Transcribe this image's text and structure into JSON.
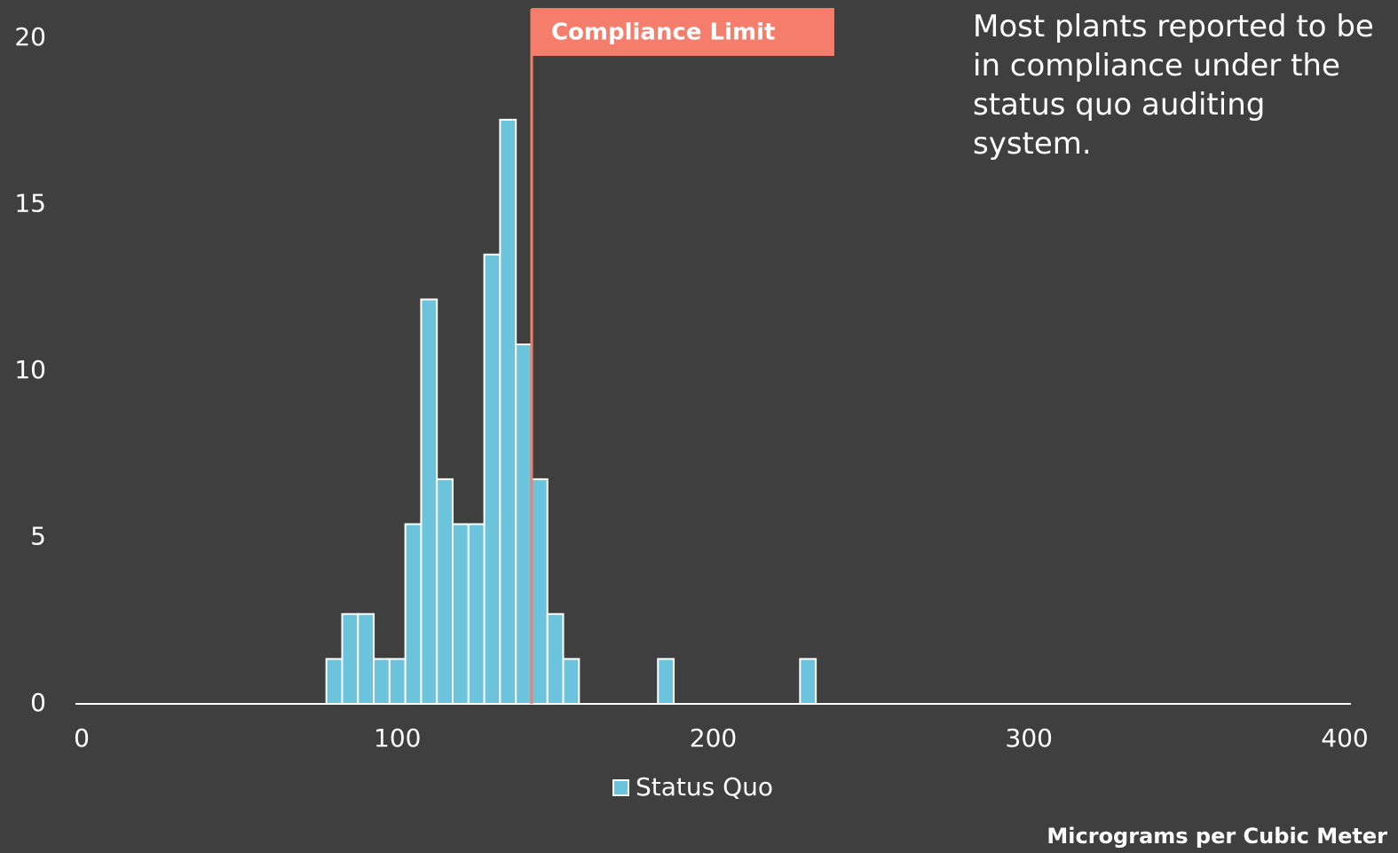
{
  "chart_data": {
    "type": "histogram",
    "series": [
      {
        "name": "Status Quo",
        "color": "#6cc3dc",
        "values": [
          1.35,
          2.7,
          2.7,
          1.35,
          1.35,
          5.4,
          12.15,
          6.75,
          5.4,
          5.4,
          13.5,
          17.55,
          10.8,
          6.75,
          2.7,
          1.35,
          0,
          0,
          0,
          0,
          0,
          1.35,
          0,
          0,
          0,
          0,
          0,
          0,
          0,
          0,
          1.35
        ]
      }
    ],
    "bins": [
      77.5,
      82.5,
      87.5,
      92.5,
      97.5,
      102.5,
      107.5,
      112.5,
      117.5,
      122.5,
      127.5,
      132.5,
      137.5,
      142.5,
      147.5,
      152.5,
      157.5,
      162.5,
      167.5,
      172.5,
      177.5,
      182.5,
      187.5,
      192.5,
      197.5,
      202.5,
      207.5,
      212.5,
      217.5,
      222.5,
      227.5,
      232.5
    ],
    "xlim": [
      0,
      400
    ],
    "xticks": [
      0,
      100,
      200,
      300,
      400
    ],
    "ylim": [
      0,
      20
    ],
    "yticks": [
      0,
      5,
      10,
      15,
      20
    ],
    "x_label": "Micrograms per Cubic Meter",
    "reference_line": {
      "value": 142.5,
      "label": "Compliance Limit",
      "color": "#f47e6b"
    },
    "annotation": "Most plants reported to be in compliance under the status quo auditing system.",
    "legend": "bottom"
  }
}
